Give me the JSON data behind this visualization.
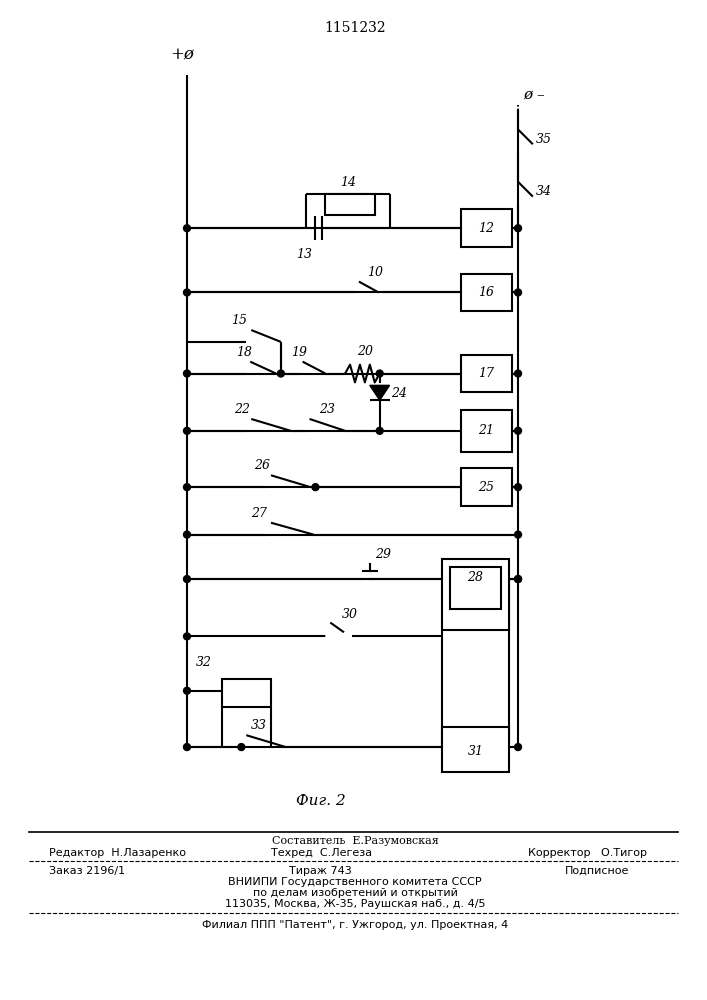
{
  "title": "1151232",
  "fig_label": "Фиг. 2",
  "bg": "#ffffff",
  "lc": "#000000",
  "lw": 1.5,
  "footer": {
    "line1_center": "Составитель  Е.Разумовская",
    "line2_left": "Редактор  Н.Лазаренко",
    "line2_center": "Техред  С.Легеза",
    "line2_right": "Корректор   О.Тигор",
    "line3_left": "Заказ 2196/1",
    "line3_center": "Тираж 743",
    "line3_right": "Подписное",
    "line4": "ВНИИПИ Государственного комитета СССР",
    "line5": "по делам изобретений и открытий",
    "line6": "113035, Москва, Ж-35, Раушская наб., д. 4/5",
    "line7": "Филиал ППП \"Патент\", г. Ужгород, ул. Проектная, 4"
  }
}
